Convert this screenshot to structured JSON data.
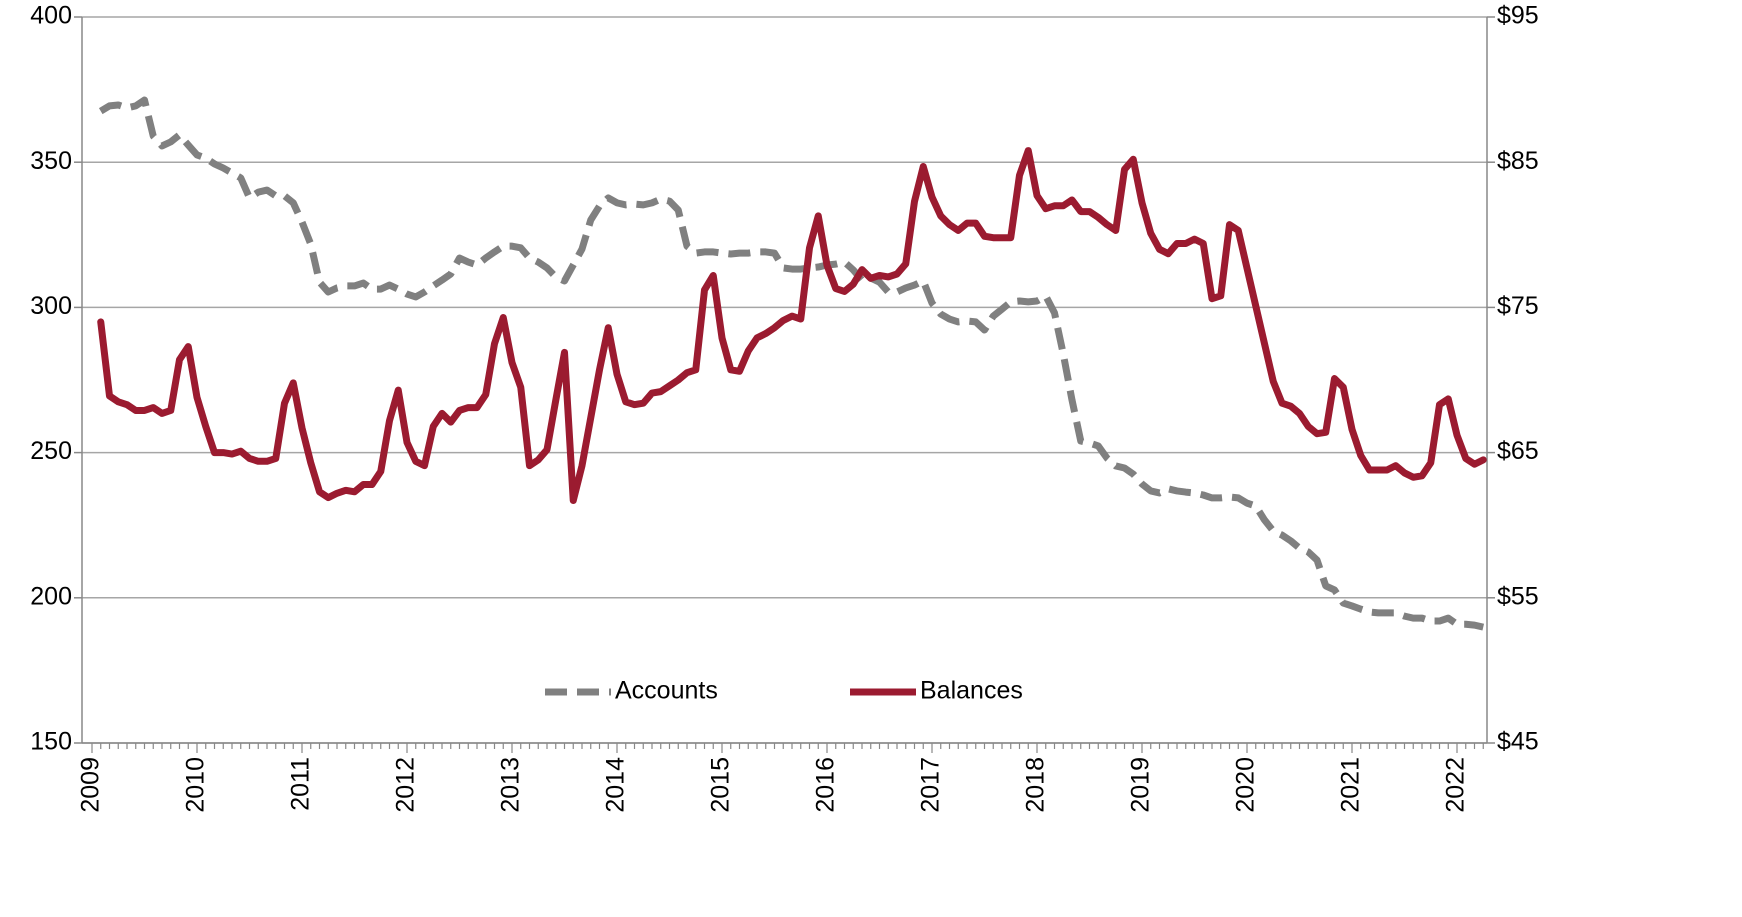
{
  "chart_data": {
    "type": "line",
    "categories": [
      "2009",
      null,
      null,
      null,
      null,
      null,
      null,
      null,
      null,
      null,
      null,
      null,
      "2010",
      null,
      null,
      null,
      null,
      null,
      null,
      null,
      null,
      null,
      null,
      null,
      "2011",
      null,
      null,
      null,
      null,
      null,
      null,
      null,
      null,
      null,
      null,
      null,
      "2012",
      null,
      null,
      null,
      null,
      null,
      null,
      null,
      null,
      null,
      null,
      null,
      "2013",
      null,
      null,
      null,
      null,
      null,
      null,
      null,
      null,
      null,
      null,
      null,
      "2014",
      null,
      null,
      null,
      null,
      null,
      null,
      null,
      null,
      null,
      null,
      null,
      "2015",
      null,
      null,
      null,
      null,
      null,
      null,
      null,
      null,
      null,
      null,
      null,
      "2016",
      null,
      null,
      null,
      null,
      null,
      null,
      null,
      null,
      null,
      null,
      null,
      "2017",
      null,
      null,
      null,
      null,
      null,
      null,
      null,
      null,
      null,
      null,
      null,
      "2018",
      null,
      null,
      null,
      null,
      null,
      null,
      null,
      null,
      null,
      null,
      null,
      "2019",
      null,
      null,
      null,
      null,
      null,
      null,
      null,
      null,
      null,
      null,
      null,
      "2020",
      null,
      null,
      null,
      null,
      null,
      null,
      null,
      null,
      null,
      null,
      null,
      "2021",
      null,
      null,
      null,
      null,
      null,
      null,
      null,
      null,
      null,
      null,
      null,
      "2022",
      null,
      null,
      null
    ],
    "series": [
      {
        "name": "Accounts",
        "color": "#808080",
        "dashed": true,
        "values": [
          null,
          367.6,
          369.4,
          369.7,
          368.7,
          369.4,
          371.4,
          359.0,
          355.6,
          357.0,
          359.4,
          355.9,
          352.5,
          351.4,
          349.4,
          348.0,
          346.3,
          344.6,
          337.7,
          339.7,
          340.4,
          338.4,
          338.4,
          336.0,
          329.4,
          321.8,
          308.7,
          305.3,
          306.7,
          307.4,
          307.4,
          308.4,
          306.3,
          306.3,
          307.7,
          306.3,
          304.6,
          303.6,
          305.3,
          307.4,
          309.4,
          311.5,
          317.0,
          315.6,
          314.6,
          317.0,
          319.1,
          321.1,
          321.1,
          320.5,
          317.0,
          315.6,
          313.6,
          310.5,
          309.1,
          314.6,
          320.1,
          330.1,
          334.9,
          337.7,
          336.0,
          335.3,
          335.6,
          335.3,
          336.0,
          337.3,
          336.6,
          333.5,
          321.1,
          318.7,
          319.1,
          319.1,
          318.7,
          318.4,
          318.7,
          318.7,
          319.1,
          319.1,
          318.7,
          313.6,
          313.2,
          313.2,
          313.6,
          313.9,
          314.6,
          314.9,
          315.6,
          312.9,
          309.4,
          310.1,
          308.7,
          305.3,
          305.3,
          306.7,
          307.7,
          309.1,
          301.5,
          297.7,
          296.0,
          295.0,
          295.3,
          295.0,
          292.2,
          297.0,
          299.4,
          301.9,
          302.2,
          301.9,
          302.2,
          303.9,
          298.1,
          284.0,
          268.1,
          254.0,
          253.3,
          252.3,
          248.1,
          245.4,
          244.7,
          242.6,
          239.2,
          236.8,
          236.1,
          237.5,
          236.8,
          236.4,
          236.1,
          235.4,
          234.4,
          234.4,
          234.7,
          234.4,
          232.6,
          231.6,
          226.8,
          223.0,
          221.6,
          219.6,
          217.1,
          215.8,
          213.0,
          204.1,
          202.7,
          198.2,
          197.2,
          196.1,
          195.1,
          194.8,
          194.8,
          194.8,
          193.7,
          193.0,
          193.0,
          192.0,
          192.0,
          193.0,
          190.9,
          190.9,
          190.6,
          189.9
        ]
      },
      {
        "name": "Balances",
        "color": "#9b1b30",
        "axis": "y2",
        "values": [
          null,
          74.0,
          68.9,
          68.5,
          68.3,
          67.9,
          67.9,
          68.1,
          67.7,
          67.9,
          71.4,
          72.3,
          68.8,
          66.8,
          65.0,
          65.0,
          64.9,
          65.1,
          64.6,
          64.4,
          64.4,
          64.6,
          68.4,
          69.8,
          66.7,
          64.3,
          62.3,
          61.9,
          62.2,
          62.4,
          62.3,
          62.8,
          62.8,
          63.7,
          67.2,
          69.3,
          65.7,
          64.4,
          64.1,
          66.8,
          67.7,
          67.1,
          67.9,
          68.1,
          68.1,
          69.0,
          72.5,
          74.3,
          71.2,
          69.5,
          64.1,
          64.5,
          65.2,
          68.6,
          71.9,
          61.7,
          64.1,
          67.4,
          70.7,
          73.6,
          70.4,
          68.5,
          68.3,
          68.4,
          69.1,
          69.2,
          69.6,
          70.0,
          70.5,
          70.7,
          76.2,
          77.2,
          72.9,
          70.7,
          70.6,
          72.0,
          72.9,
          73.2,
          73.6,
          74.1,
          74.4,
          74.2,
          79.1,
          81.3,
          77.9,
          76.3,
          76.1,
          76.6,
          77.6,
          77.0,
          77.2,
          77.1,
          77.3,
          78.0,
          82.3,
          84.7,
          82.6,
          81.3,
          80.7,
          80.3,
          80.8,
          80.8,
          79.9,
          79.8,
          79.8,
          79.8,
          84.1,
          85.8,
          82.7,
          81.8,
          82.0,
          82.0,
          82.4,
          81.6,
          81.6,
          81.2,
          80.7,
          80.3,
          84.5,
          85.2,
          82.2,
          80.1,
          79.0,
          78.7,
          79.4,
          79.4,
          79.7,
          79.4,
          75.6,
          75.8,
          80.7,
          80.3,
          77.7,
          75.1,
          72.5,
          69.9,
          68.4,
          68.2,
          67.7,
          66.8,
          66.3,
          66.4,
          70.1,
          69.5,
          66.6,
          64.8,
          63.8,
          63.8,
          63.8,
          64.1,
          63.6,
          63.3,
          63.4,
          64.3,
          68.3,
          68.7,
          66.2,
          64.6,
          64.2,
          64.5
        ]
      }
    ],
    "ylim": [
      150,
      400
    ],
    "yticks": [
      150,
      200,
      250,
      300,
      350,
      400
    ],
    "y2lim": [
      45,
      95
    ],
    "y2ticks": [
      {
        "value": 45,
        "label": "$45"
      },
      {
        "value": 55,
        "label": "$55"
      },
      {
        "value": 65,
        "label": "$65"
      },
      {
        "value": 75,
        "label": "$75"
      },
      {
        "value": 85,
        "label": "$85"
      },
      {
        "value": 95,
        "label": "$95"
      }
    ],
    "grid": true,
    "legend": "lower center"
  }
}
